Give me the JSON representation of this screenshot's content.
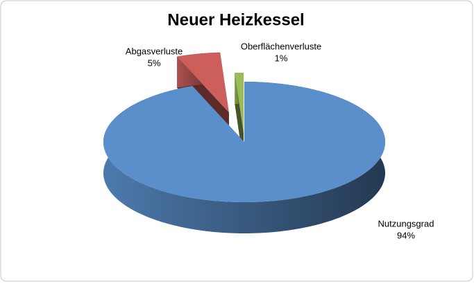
{
  "chart_data": {
    "type": "pie",
    "title": "Neuer Heizkessel",
    "categories": [
      "Nutzungsgrad",
      "Abgasverluste",
      "Oberflächenverluste"
    ],
    "values": [
      94,
      5,
      1
    ],
    "value_labels": [
      "94%",
      "5%",
      "1%"
    ],
    "colors": [
      "#5b8fcb",
      "#cd5f5a",
      "#9bbb59"
    ]
  }
}
